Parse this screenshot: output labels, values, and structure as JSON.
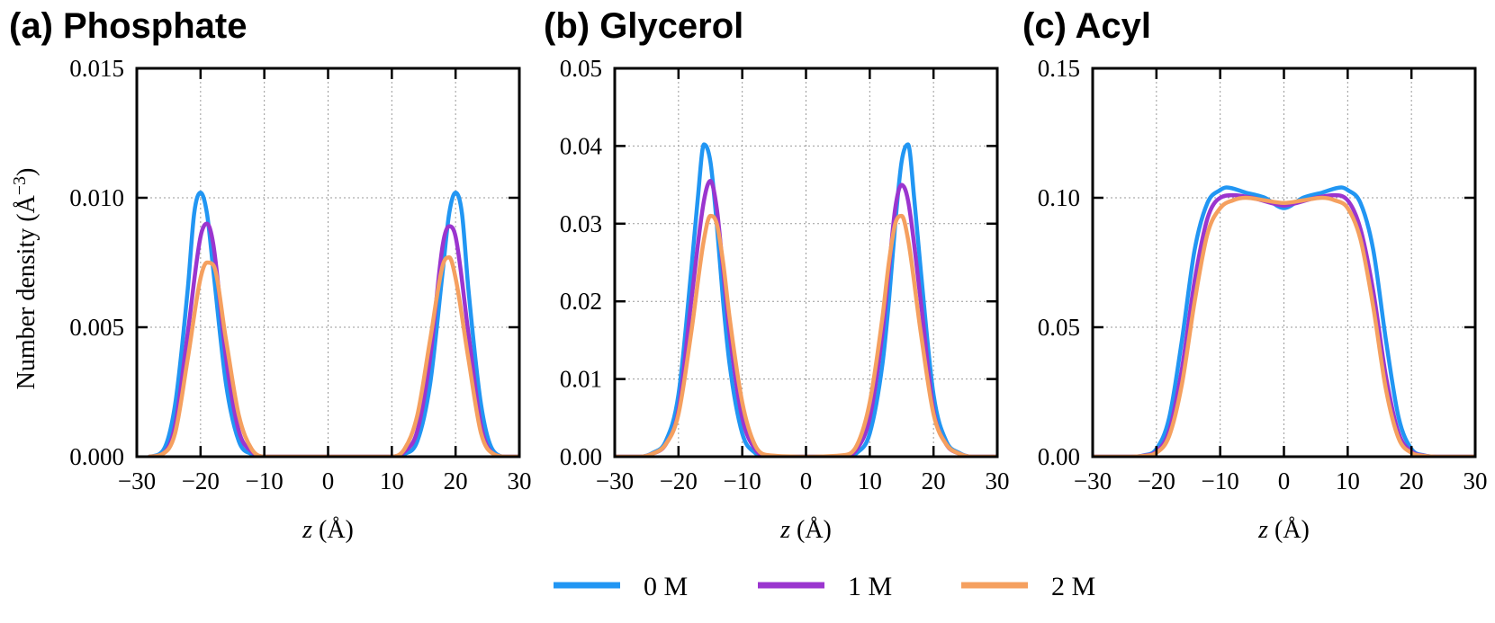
{
  "chart_data": [
    {
      "type": "line",
      "title": "(a) Phosphate",
      "xlabel_var": "z",
      "xlabel_unit": "(Å)",
      "ylabel_text": "Number density (Å",
      "ylabel_exp": "−3",
      "ylabel_close": ")",
      "xlim": [
        -30,
        30
      ],
      "ylim": [
        0,
        0.015
      ],
      "xticks": [
        -30,
        -20,
        -10,
        0,
        10,
        20,
        30
      ],
      "xtick_labels": [
        "−30",
        "−20",
        "−10",
        "0",
        "10",
        "20",
        "30"
      ],
      "yticks": [
        0,
        0.005,
        0.01,
        0.015
      ],
      "ytick_labels": [
        "0.000",
        "0.005",
        "0.010",
        "0.015"
      ],
      "grid": true,
      "series": [
        {
          "name": "0 M",
          "x": [
            -28,
            -26,
            -24,
            -22,
            -21,
            -20,
            -19,
            -18,
            -16,
            -14,
            -12,
            -10,
            0,
            10,
            12,
            14,
            16,
            18,
            19,
            20,
            21,
            22,
            24,
            26,
            28,
            30
          ],
          "values": [
            0,
            0.0002,
            0.002,
            0.0065,
            0.0094,
            0.0102,
            0.0094,
            0.0072,
            0.0028,
            0.0006,
            0.0001,
            0,
            0,
            0,
            0.0001,
            0.0006,
            0.0028,
            0.0072,
            0.0094,
            0.0102,
            0.0094,
            0.0065,
            0.002,
            0.0002,
            0,
            0
          ]
        },
        {
          "name": "1 M",
          "x": [
            -28,
            -26,
            -24,
            -22,
            -20,
            -19,
            -18,
            -16,
            -14,
            -12,
            -10,
            0,
            10,
            12,
            14,
            16,
            18,
            19,
            20,
            22,
            24,
            26,
            28,
            30
          ],
          "values": [
            0,
            0.0001,
            0.0012,
            0.0048,
            0.0085,
            0.009,
            0.0082,
            0.0038,
            0.001,
            0.0002,
            0,
            0,
            0,
            0.0002,
            0.001,
            0.0038,
            0.0082,
            0.0089,
            0.0085,
            0.0048,
            0.0012,
            0.0001,
            0,
            0
          ]
        },
        {
          "name": "2 M",
          "x": [
            -28,
            -26,
            -24,
            -22,
            -20,
            -19,
            -18,
            -16,
            -14,
            -12,
            -10,
            0,
            10,
            12,
            14,
            16,
            18,
            19,
            20,
            22,
            24,
            26,
            28,
            30
          ],
          "values": [
            0,
            0.0001,
            0.0009,
            0.0038,
            0.0069,
            0.0075,
            0.0074,
            0.0045,
            0.0016,
            0.0003,
            0,
            0,
            0,
            0.0003,
            0.0016,
            0.0045,
            0.0074,
            0.0077,
            0.0069,
            0.0038,
            0.0009,
            0.0001,
            0,
            0
          ]
        }
      ]
    },
    {
      "type": "line",
      "title": "(b) Glycerol",
      "xlabel_var": "z",
      "xlabel_unit": "(Å)",
      "xlim": [
        -30,
        30
      ],
      "ylim": [
        0,
        0.05
      ],
      "xticks": [
        -30,
        -20,
        -10,
        0,
        10,
        20,
        30
      ],
      "xtick_labels": [
        "−30",
        "−20",
        "−10",
        "0",
        "10",
        "20",
        "30"
      ],
      "yticks": [
        0,
        0.01,
        0.02,
        0.03,
        0.04,
        0.05
      ],
      "ytick_labels": [
        "0.00",
        "0.01",
        "0.02",
        "0.03",
        "0.04",
        "0.05"
      ],
      "grid": true,
      "series": [
        {
          "name": "0 M",
          "x": [
            -30,
            -26,
            -24,
            -22,
            -20,
            -18,
            -17,
            -16,
            -15,
            -14,
            -13,
            -12,
            -10,
            -8,
            -6,
            0,
            6,
            8,
            10,
            12,
            13,
            14,
            15,
            16,
            17,
            18,
            20,
            22,
            24,
            26,
            30
          ],
          "values": [
            0,
            0,
            0.0005,
            0.002,
            0.008,
            0.024,
            0.033,
            0.0402,
            0.038,
            0.03,
            0.02,
            0.012,
            0.003,
            0.0005,
            0,
            0,
            0,
            0.0005,
            0.003,
            0.012,
            0.02,
            0.03,
            0.038,
            0.0402,
            0.033,
            0.024,
            0.008,
            0.002,
            0.0005,
            0,
            0
          ]
        },
        {
          "name": "1 M",
          "x": [
            -30,
            -26,
            -24,
            -22,
            -20,
            -18,
            -16,
            -15,
            -14,
            -13,
            -12,
            -10,
            -8,
            -6,
            0,
            6,
            8,
            10,
            12,
            13,
            14,
            15,
            16,
            18,
            20,
            22,
            24,
            26,
            30
          ],
          "values": [
            0,
            0,
            0.0004,
            0.0016,
            0.006,
            0.02,
            0.033,
            0.0355,
            0.032,
            0.024,
            0.016,
            0.005,
            0.001,
            0,
            0,
            0,
            0.001,
            0.005,
            0.016,
            0.024,
            0.032,
            0.035,
            0.033,
            0.02,
            0.006,
            0.0016,
            0.0004,
            0,
            0
          ]
        },
        {
          "name": "2 M",
          "x": [
            -30,
            -26,
            -24,
            -22,
            -20,
            -18,
            -16,
            -15,
            -14,
            -13,
            -12,
            -10,
            -8,
            -6,
            0,
            6,
            8,
            10,
            12,
            13,
            14,
            15,
            16,
            18,
            20,
            22,
            24,
            26,
            30
          ],
          "values": [
            0,
            0,
            0.0004,
            0.0016,
            0.0055,
            0.016,
            0.028,
            0.031,
            0.03,
            0.025,
            0.018,
            0.007,
            0.0015,
            0.0002,
            0,
            0.0002,
            0.0015,
            0.007,
            0.018,
            0.025,
            0.03,
            0.031,
            0.028,
            0.016,
            0.0055,
            0.0016,
            0.0004,
            0,
            0
          ]
        }
      ]
    },
    {
      "type": "line",
      "title": "(c) Acyl",
      "xlabel_var": "z",
      "xlabel_unit": "(Å)",
      "xlim": [
        -30,
        30
      ],
      "ylim": [
        0,
        0.15
      ],
      "xticks": [
        -30,
        -20,
        -10,
        0,
        10,
        20,
        30
      ],
      "xtick_labels": [
        "−30",
        "−20",
        "−10",
        "0",
        "10",
        "20",
        "30"
      ],
      "yticks": [
        0,
        0.05,
        0.1,
        0.15
      ],
      "ytick_labels": [
        "0.00",
        "0.05",
        "0.10",
        "0.15"
      ],
      "grid": true,
      "series": [
        {
          "name": "0 M",
          "x": [
            -30,
            -24,
            -22,
            -20,
            -18,
            -16,
            -14,
            -12,
            -10,
            -9,
            -6,
            -3,
            0,
            3,
            6,
            9,
            10,
            12,
            14,
            16,
            18,
            20,
            22,
            24,
            30
          ],
          "values": [
            0,
            0,
            0.0005,
            0.003,
            0.015,
            0.045,
            0.08,
            0.098,
            0.103,
            0.104,
            0.102,
            0.1,
            0.096,
            0.1,
            0.102,
            0.104,
            0.103,
            0.098,
            0.08,
            0.045,
            0.015,
            0.003,
            0.0005,
            0,
            0
          ]
        },
        {
          "name": "1 M",
          "x": [
            -30,
            -24,
            -22,
            -20,
            -18,
            -16,
            -14,
            -12,
            -10,
            -8,
            -5,
            -2,
            0,
            2,
            5,
            8,
            10,
            12,
            14,
            16,
            18,
            20,
            22,
            24,
            30
          ],
          "values": [
            0,
            0,
            0.0004,
            0.002,
            0.01,
            0.034,
            0.068,
            0.092,
            0.1,
            0.101,
            0.1,
            0.098,
            0.097,
            0.098,
            0.1,
            0.101,
            0.099,
            0.088,
            0.064,
            0.031,
            0.009,
            0.002,
            0.0004,
            0,
            0
          ]
        },
        {
          "name": "2 M",
          "x": [
            -30,
            -24,
            -22,
            -20,
            -18,
            -16,
            -14,
            -12,
            -10,
            -8,
            -6,
            -3,
            0,
            3,
            6,
            8,
            10,
            12,
            14,
            16,
            18,
            20,
            22,
            24,
            30
          ],
          "values": [
            0,
            0,
            0.0003,
            0.0015,
            0.008,
            0.028,
            0.06,
            0.086,
            0.096,
            0.099,
            0.1,
            0.099,
            0.098,
            0.099,
            0.1,
            0.099,
            0.096,
            0.084,
            0.058,
            0.026,
            0.007,
            0.0015,
            0.0003,
            0,
            0
          ]
        }
      ]
    }
  ],
  "legend": {
    "placement": "bottom-center",
    "items": [
      {
        "label": "0 M",
        "color": "#2196F3"
      },
      {
        "label": "1 M",
        "color": "#9B35CF"
      },
      {
        "label": "2 M",
        "color": "#F5A05F"
      }
    ]
  },
  "series_colors": [
    "#2196F3",
    "#9B35CF",
    "#F5A05F"
  ]
}
